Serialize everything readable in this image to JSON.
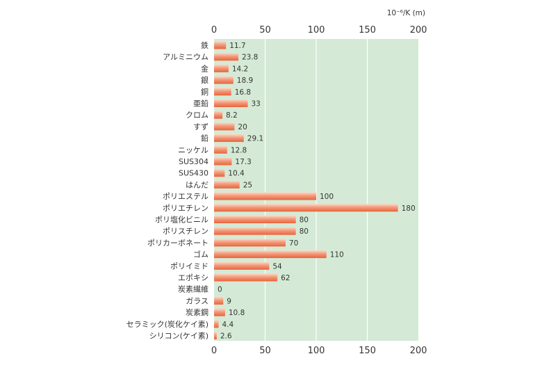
{
  "chart_data": {
    "type": "bar",
    "orientation": "horizontal",
    "unit": "10⁻⁶/K (m)",
    "xlim": [
      0,
      200
    ],
    "xticks": [
      "0",
      "50",
      "100",
      "150",
      "200"
    ],
    "grid": true,
    "categories": [
      "鉄",
      "アルミニウム",
      "金",
      "銀",
      "銅",
      "亜鉛",
      "クロム",
      "すず",
      "鉛",
      "ニッケル",
      "SUS304",
      "SUS430",
      "はんだ",
      "ポリエステル",
      "ポリエチレン",
      "ポリ塩化ビニル",
      "ポリスチレン",
      "ポリカーボネート",
      "ゴム",
      "ポリイミド",
      "エポキシ",
      "炭素繊維",
      "ガラス",
      "炭素鋼",
      "セラミック(炭化ケイ素)",
      "シリコン(ケイ素)"
    ],
    "values": [
      11.7,
      23.8,
      14.2,
      18.9,
      16.8,
      33,
      8.2,
      20,
      29.1,
      12.8,
      17.3,
      10.4,
      25,
      100,
      180,
      80,
      80,
      70,
      110,
      54,
      62,
      0,
      9,
      10.8,
      4.4,
      2.6
    ],
    "value_labels": [
      "11.7",
      "23.8",
      "14.2",
      "18.9",
      "16.8",
      "33",
      "8.2",
      "20",
      "29.1",
      "12.8",
      "17.3",
      "10.4",
      "25",
      "100",
      "180",
      "80",
      "80",
      "70",
      "110",
      "54",
      "62",
      "0",
      "9",
      "10.8",
      "4.4",
      "2.6"
    ]
  },
  "colors": {
    "plot_background": "#d5ead6",
    "gridline": "#ffffff",
    "bar_light": "#fbd8c4",
    "bar_dark": "#e8643a",
    "text": "#333333"
  }
}
